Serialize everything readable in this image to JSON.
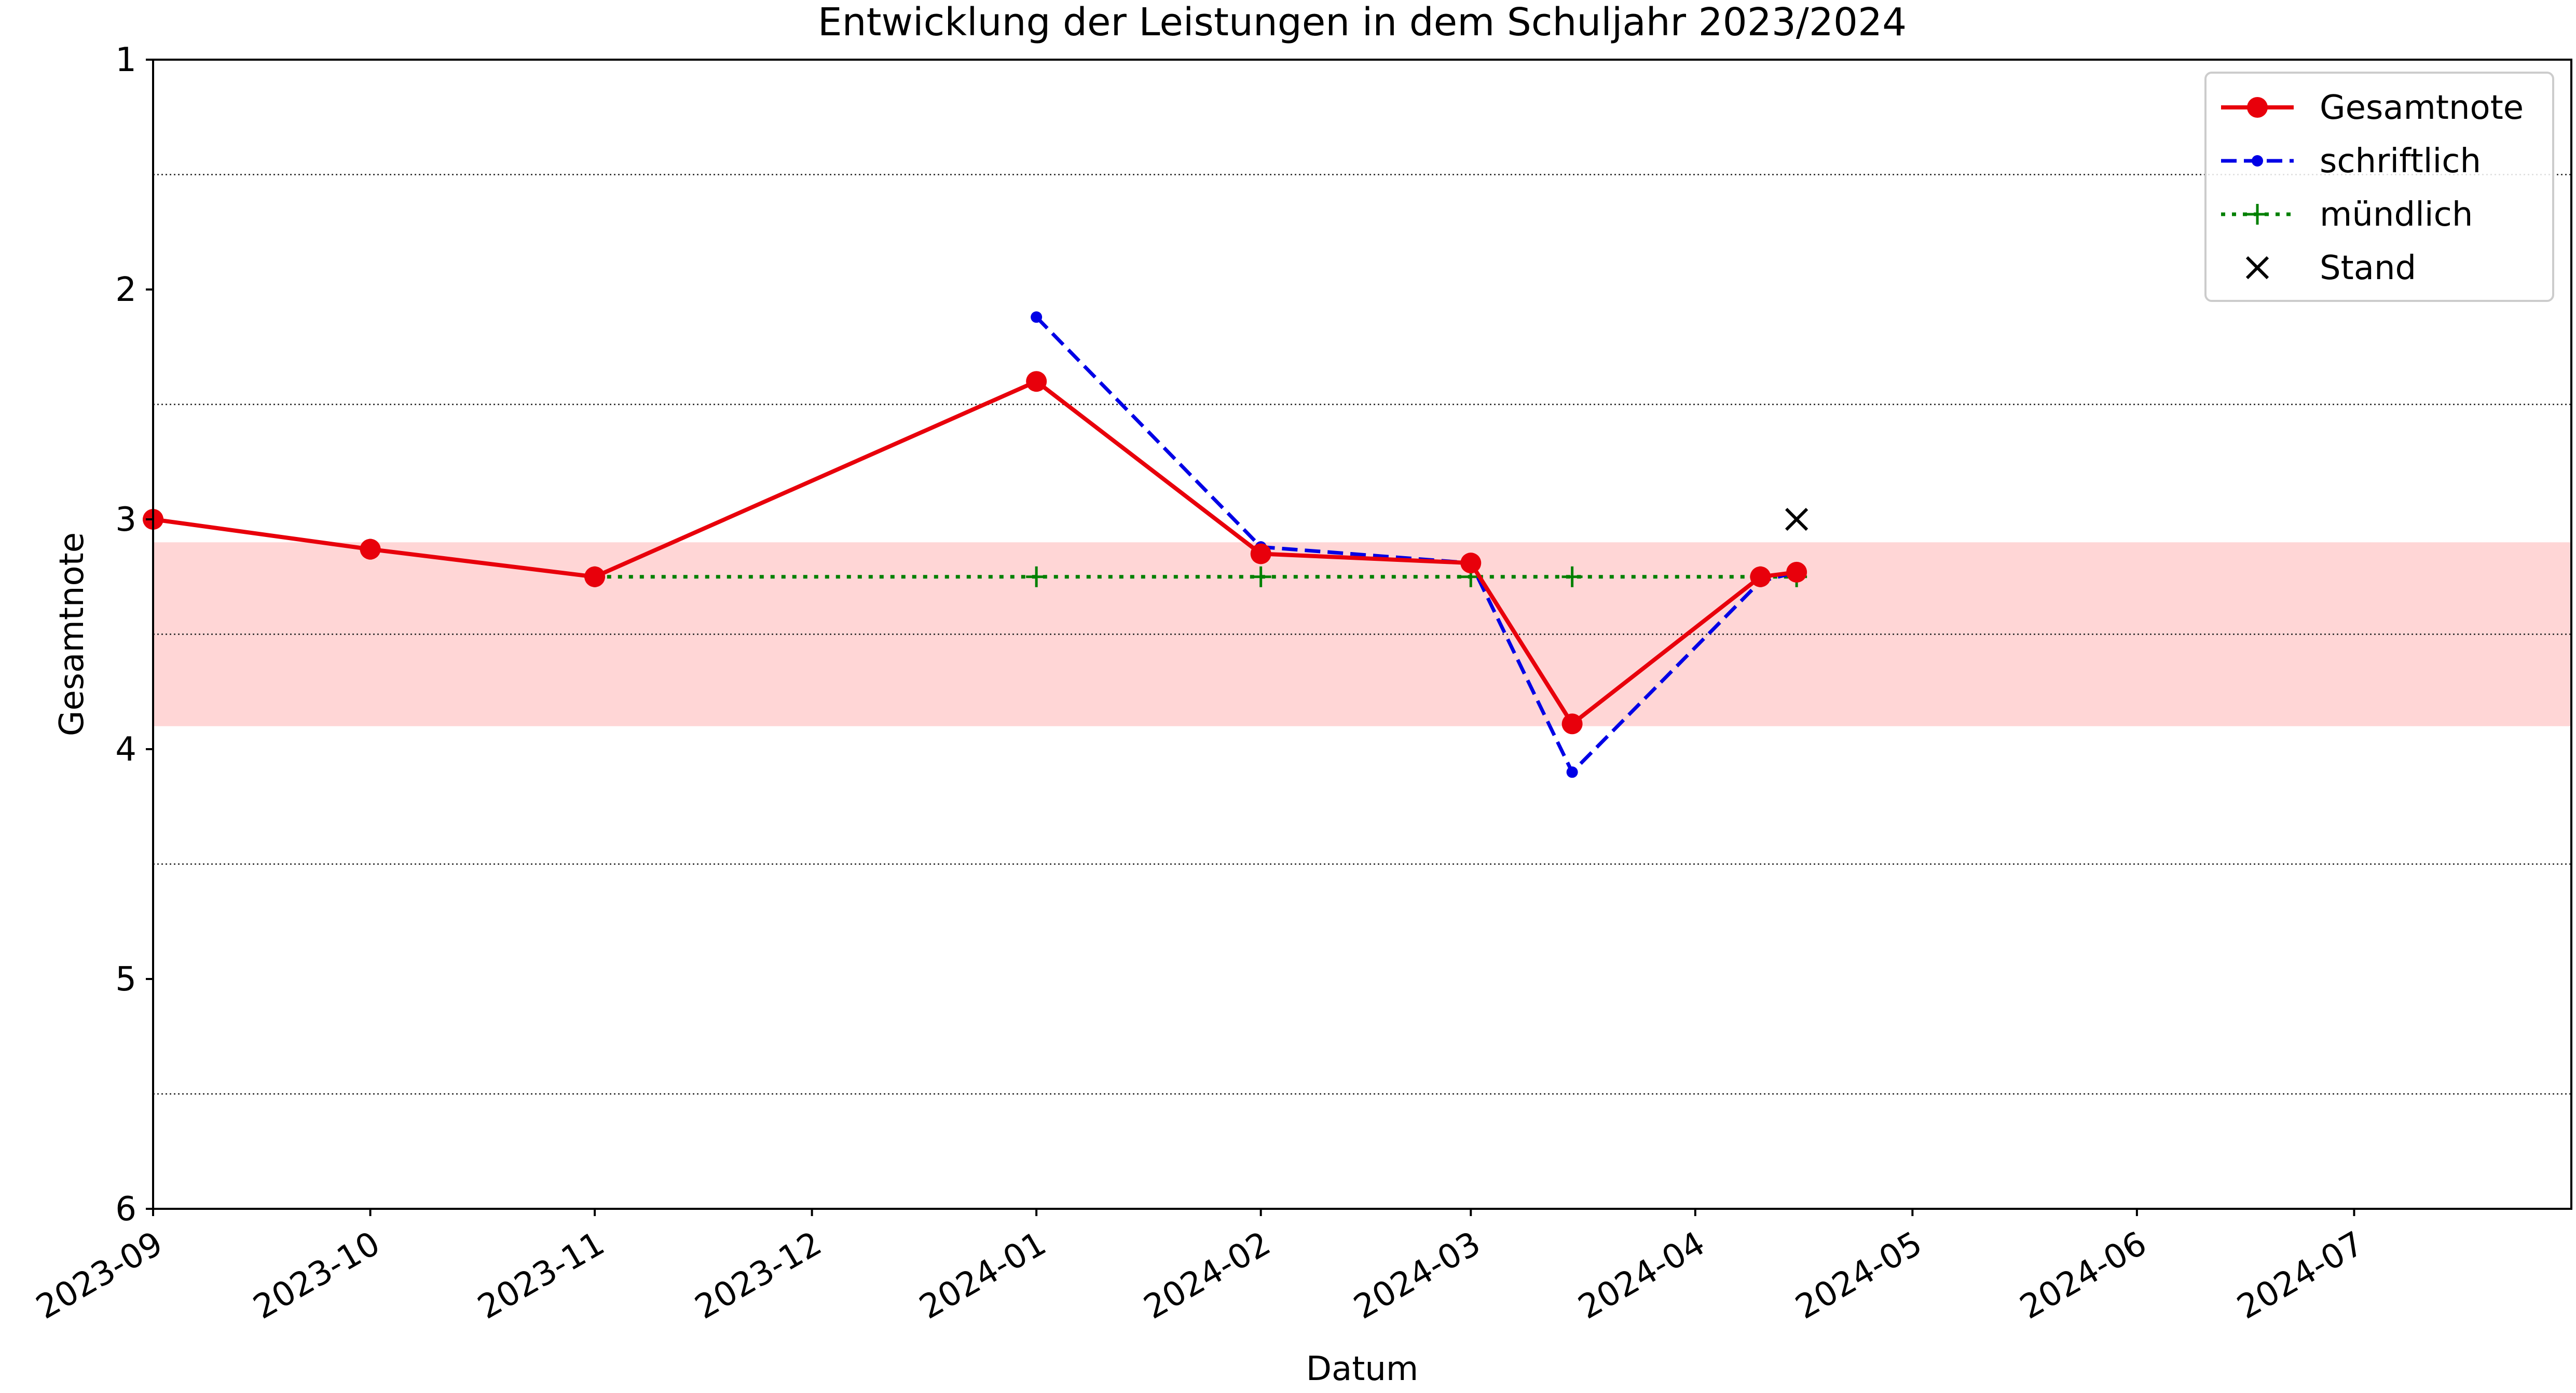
{
  "chart_data": {
    "type": "line",
    "title": "Entwicklung der Leistungen in dem Schuljahr 2023/2024",
    "xlabel": "Datum",
    "ylabel": "Gesamtnote",
    "xlim": [
      "2023-09-01",
      "2024-07-31"
    ],
    "ylim": [
      1,
      6
    ],
    "y_inverted": true,
    "yticks": [
      1,
      2,
      3,
      4,
      5,
      6
    ],
    "xticks": [
      "2023-09",
      "2023-10",
      "2023-11",
      "2023-12",
      "2024-01",
      "2024-02",
      "2024-03",
      "2024-04",
      "2024-05",
      "2024-06",
      "2024-07"
    ],
    "grid": "horizontal dotted lines at half grades",
    "grid_y": [
      1.5,
      2.5,
      3.5,
      4.5,
      5.5
    ],
    "band": {
      "y_range": [
        3.1,
        3.9
      ],
      "color": "#ffd6d6"
    },
    "legend_position": "top-right",
    "series": [
      {
        "name": "Gesamtnote",
        "color": "#e8000b",
        "style": "solid",
        "marker": "circle",
        "points": [
          {
            "x": "2023-09-01",
            "y": 3.0
          },
          {
            "x": "2023-10-01",
            "y": 3.13
          },
          {
            "x": "2023-11-01",
            "y": 3.25
          },
          {
            "x": "2024-01-01",
            "y": 2.4
          },
          {
            "x": "2024-02-01",
            "y": 3.15
          },
          {
            "x": "2024-03-01",
            "y": 3.19
          },
          {
            "x": "2024-03-15",
            "y": 3.89
          },
          {
            "x": "2024-04-10",
            "y": 3.25
          },
          {
            "x": "2024-04-15",
            "y": 3.23
          }
        ]
      },
      {
        "name": "schriftlich",
        "color": "#0000e6",
        "style": "dashed",
        "marker": "small-circle",
        "points": [
          {
            "x": "2024-01-01",
            "y": 2.12
          },
          {
            "x": "2024-02-01",
            "y": 3.12
          },
          {
            "x": "2024-03-01",
            "y": 3.19
          },
          {
            "x": "2024-03-15",
            "y": 4.1
          },
          {
            "x": "2024-04-10",
            "y": 3.27
          },
          {
            "x": "2024-04-15",
            "y": 3.23
          }
        ]
      },
      {
        "name": "mündlich",
        "color": "#008000",
        "style": "dotted",
        "marker": "plus",
        "points": [
          {
            "x": "2023-09-01",
            "y": 3.0
          },
          {
            "x": "2023-10-01",
            "y": 3.13
          },
          {
            "x": "2023-11-01",
            "y": 3.25
          },
          {
            "x": "2024-01-01",
            "y": 3.25
          },
          {
            "x": "2024-02-01",
            "y": 3.25
          },
          {
            "x": "2024-03-01",
            "y": 3.25
          },
          {
            "x": "2024-03-15",
            "y": 3.25
          },
          {
            "x": "2024-04-10",
            "y": 3.25
          },
          {
            "x": "2024-04-15",
            "y": 3.25
          }
        ]
      },
      {
        "name": "Stand",
        "color": "#000000",
        "style": "none",
        "marker": "x",
        "points": [
          {
            "x": "2024-04-15",
            "y": 3.0
          }
        ]
      }
    ]
  }
}
